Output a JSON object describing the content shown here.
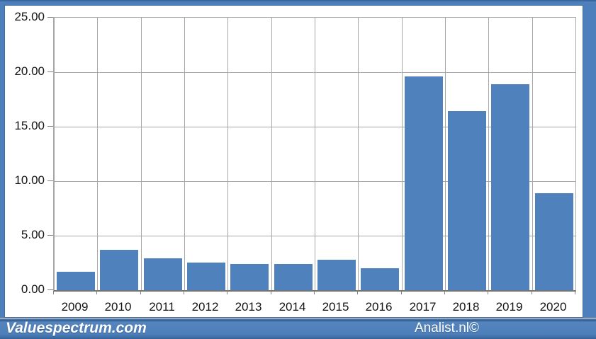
{
  "chart_data": {
    "type": "bar",
    "title": "",
    "xlabel": "",
    "ylabel": "",
    "categories": [
      "2009",
      "2010",
      "2011",
      "2012",
      "2013",
      "2014",
      "2015",
      "2016",
      "2017",
      "2018",
      "2019",
      "2020"
    ],
    "values": [
      1.7,
      3.7,
      2.9,
      2.5,
      2.4,
      2.4,
      2.8,
      2.0,
      19.6,
      16.4,
      18.9,
      8.9
    ],
    "ylim": [
      0,
      25
    ],
    "yticks": [
      0,
      5,
      10,
      15,
      20,
      25
    ],
    "ytick_labels": [
      "0.00",
      "5.00",
      "10.00",
      "15.00",
      "20.00",
      "25.00"
    ],
    "grid": "on",
    "legend": "none",
    "bar_color": "#4f81bd",
    "gridline_color": "#a6a6a6"
  },
  "footer": {
    "left_text": "Valuespectrum.com",
    "right_text": "Analist.nl©"
  },
  "frame": {
    "border_color": "#4d7fbc",
    "footer_color": "#4d7fba"
  }
}
